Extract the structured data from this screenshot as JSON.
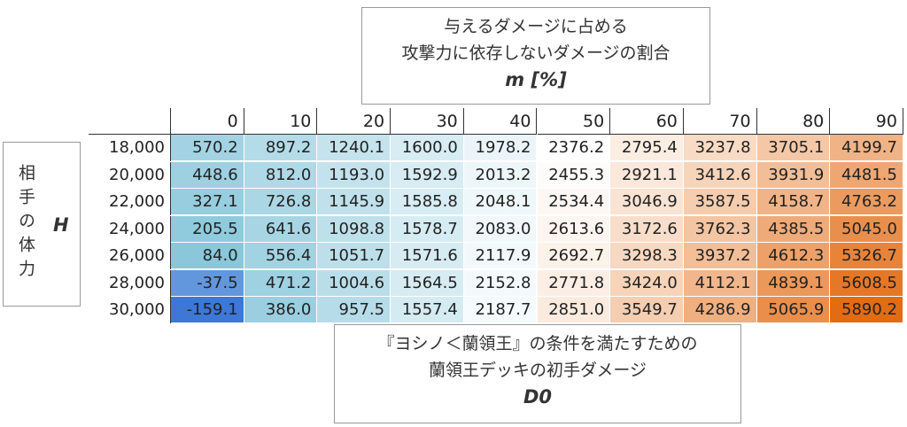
{
  "top_box": {
    "lines": [
      "与えるダメージに占める",
      "攻撃力に依存しないダメージの割合"
    ],
    "symbol": "m [%]"
  },
  "side_box": {
    "label": "相手の体力",
    "symbol": "H"
  },
  "bottom_box": {
    "lines": [
      "『ヨシノ＜蘭領王』の条件を満たすための",
      "蘭領王デッキの初手ダメージ"
    ],
    "symbol": "D0"
  },
  "table": {
    "columns": [
      0,
      10,
      20,
      30,
      40,
      50,
      60,
      70,
      80,
      90
    ],
    "row_labels": [
      "18,000",
      "20,000",
      "22,000",
      "24,000",
      "26,000",
      "28,000",
      "30,000"
    ],
    "rows": [
      [
        "570.2",
        "897.2",
        "1240.1",
        "1600.0",
        "1978.2",
        "2376.2",
        "2795.4",
        "3237.8",
        "3705.1",
        "4199.7"
      ],
      [
        "448.6",
        "812.0",
        "1193.0",
        "1592.9",
        "2013.2",
        "2455.3",
        "2921.1",
        "3412.6",
        "3931.9",
        "4481.5"
      ],
      [
        "327.1",
        "726.8",
        "1145.9",
        "1585.8",
        "2048.1",
        "2534.4",
        "3046.9",
        "3587.5",
        "4158.7",
        "4763.2"
      ],
      [
        "205.5",
        "641.6",
        "1098.8",
        "1578.7",
        "2083.0",
        "2613.6",
        "3172.6",
        "3762.3",
        "4385.5",
        "5045.0"
      ],
      [
        "84.0",
        "556.4",
        "1051.7",
        "1571.6",
        "2117.9",
        "2692.7",
        "3298.3",
        "3937.2",
        "4612.3",
        "5326.7"
      ],
      [
        "-37.5",
        "471.2",
        "1004.6",
        "1564.5",
        "2152.8",
        "2771.8",
        "3424.0",
        "4112.1",
        "4839.1",
        "5608.5"
      ],
      [
        "-159.1",
        "386.0",
        "957.5",
        "1557.4",
        "2187.7",
        "2851.0",
        "3549.7",
        "4286.9",
        "5065.9",
        "5890.2"
      ]
    ]
  }
}
